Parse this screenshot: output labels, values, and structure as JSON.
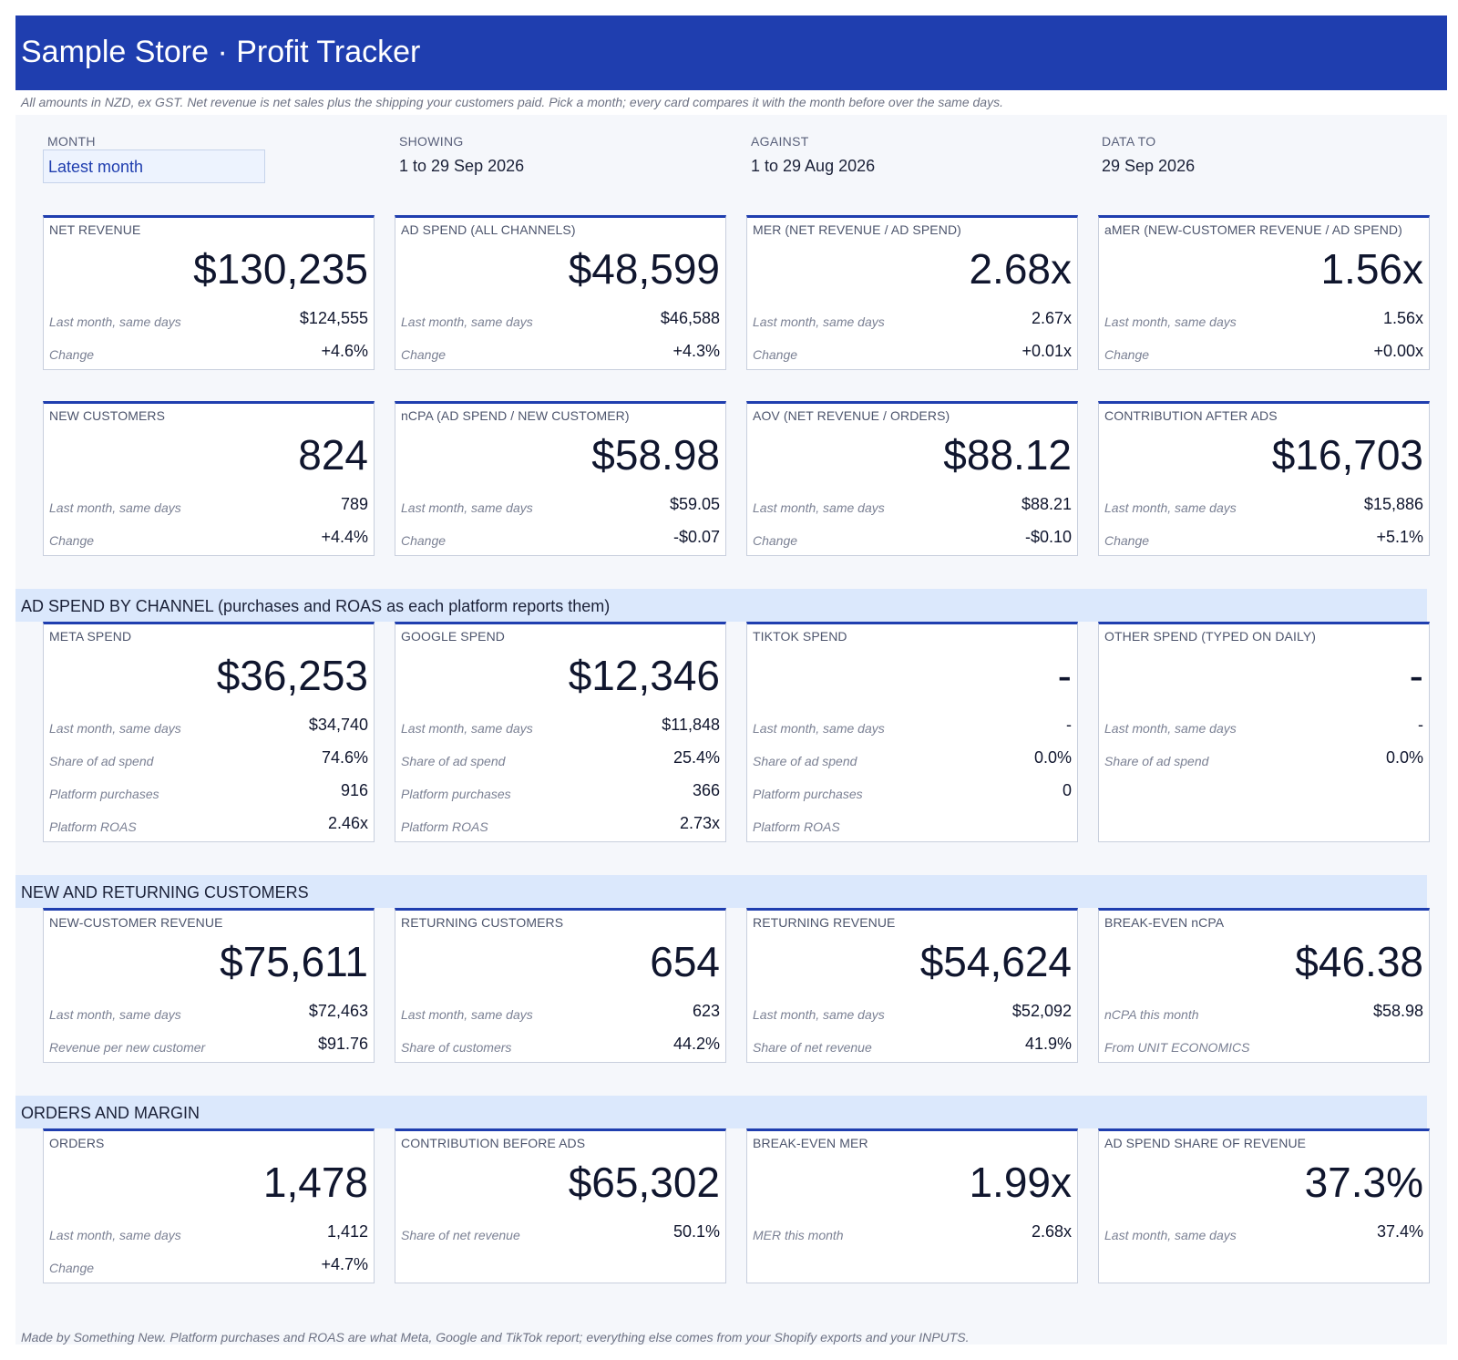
{
  "header": {
    "title": "Sample Store · Profit Tracker",
    "note": "All amounts in NZD, ex GST. Net revenue is net sales plus the shipping your customers paid. Pick a month; every card compares it with the month before over the same days."
  },
  "controls": {
    "month_label": "MONTH",
    "month_value": "Latest month",
    "showing_label": "SHOWING",
    "showing_value": "1 to 29 Sep 2026",
    "against_label": "AGAINST",
    "against_value": "1 to 29 Aug 2026",
    "data_to_label": "DATA TO",
    "data_to_value": "29 Sep 2026"
  },
  "sections": {
    "ad_spend": "AD SPEND BY CHANNEL (purchases and ROAS as each platform reports them)",
    "customers": "NEW AND RETURNING CUSTOMERS",
    "orders": "ORDERS AND MARGIN"
  },
  "cards": [
    {
      "label": "NET REVENUE",
      "value": "$130,235",
      "rows": [
        {
          "l": "Last month, same days",
          "v": "$124,555"
        },
        {
          "l": "Change",
          "v": "+4.6%"
        }
      ]
    },
    {
      "label": "AD SPEND (ALL CHANNELS)",
      "value": "$48,599",
      "rows": [
        {
          "l": "Last month, same days",
          "v": "$46,588"
        },
        {
          "l": "Change",
          "v": "+4.3%"
        }
      ]
    },
    {
      "label": "MER (NET REVENUE / AD SPEND)",
      "value": "2.68x",
      "rows": [
        {
          "l": "Last month, same days",
          "v": "2.67x"
        },
        {
          "l": "Change",
          "v": "+0.01x"
        }
      ]
    },
    {
      "label": "aMER (NEW-CUSTOMER REVENUE / AD SPEND)",
      "value": "1.56x",
      "rows": [
        {
          "l": "Last month, same days",
          "v": "1.56x"
        },
        {
          "l": "Change",
          "v": "+0.00x"
        }
      ]
    },
    {
      "label": "NEW CUSTOMERS",
      "value": "824",
      "rows": [
        {
          "l": "Last month, same days",
          "v": "789"
        },
        {
          "l": "Change",
          "v": "+4.4%"
        }
      ]
    },
    {
      "label": "nCPA (AD SPEND / NEW CUSTOMER)",
      "value": "$58.98",
      "rows": [
        {
          "l": "Last month, same days",
          "v": "$59.05"
        },
        {
          "l": "Change",
          "v": "-$0.07"
        }
      ]
    },
    {
      "label": "AOV (NET REVENUE / ORDERS)",
      "value": "$88.12",
      "rows": [
        {
          "l": "Last month, same days",
          "v": "$88.21"
        },
        {
          "l": "Change",
          "v": "-$0.10"
        }
      ]
    },
    {
      "label": "CONTRIBUTION AFTER ADS",
      "value": "$16,703",
      "rows": [
        {
          "l": "Last month, same days",
          "v": "$15,886"
        },
        {
          "l": "Change",
          "v": "+5.1%"
        }
      ]
    },
    {
      "label": "META SPEND",
      "value": "$36,253",
      "rows": [
        {
          "l": "Last month, same days",
          "v": "$34,740"
        },
        {
          "l": "Share of ad spend",
          "v": "74.6%"
        },
        {
          "l": "Platform purchases",
          "v": "916"
        },
        {
          "l": "Platform ROAS",
          "v": "2.46x"
        }
      ]
    },
    {
      "label": "GOOGLE SPEND",
      "value": "$12,346",
      "rows": [
        {
          "l": "Last month, same days",
          "v": "$11,848"
        },
        {
          "l": "Share of ad spend",
          "v": "25.4%"
        },
        {
          "l": "Platform purchases",
          "v": "366"
        },
        {
          "l": "Platform ROAS",
          "v": "2.73x"
        }
      ]
    },
    {
      "label": "TIKTOK SPEND",
      "value": "-",
      "rows": [
        {
          "l": "Last month, same days",
          "v": "-"
        },
        {
          "l": "Share of ad spend",
          "v": "0.0%"
        },
        {
          "l": "Platform purchases",
          "v": "0"
        },
        {
          "l": "Platform ROAS",
          "v": ""
        }
      ]
    },
    {
      "label": "OTHER SPEND (TYPED ON DAILY)",
      "value": "-",
      "rows": [
        {
          "l": "Last month, same days",
          "v": "-"
        },
        {
          "l": "Share of ad spend",
          "v": "0.0%"
        }
      ]
    },
    {
      "label": "NEW-CUSTOMER REVENUE",
      "value": "$75,611",
      "rows": [
        {
          "l": "Last month, same days",
          "v": "$72,463"
        },
        {
          "l": "Revenue per new customer",
          "v": "$91.76"
        }
      ]
    },
    {
      "label": "RETURNING CUSTOMERS",
      "value": "654",
      "rows": [
        {
          "l": "Last month, same days",
          "v": "623"
        },
        {
          "l": "Share of customers",
          "v": "44.2%"
        }
      ]
    },
    {
      "label": "RETURNING REVENUE",
      "value": "$54,624",
      "rows": [
        {
          "l": "Last month, same days",
          "v": "$52,092"
        },
        {
          "l": "Share of net revenue",
          "v": "41.9%"
        }
      ]
    },
    {
      "label": "BREAK-EVEN nCPA",
      "value": "$46.38",
      "rows": [
        {
          "l": "nCPA this month",
          "v": "$58.98"
        },
        {
          "l": "From UNIT ECONOMICS",
          "v": ""
        }
      ]
    },
    {
      "label": "ORDERS",
      "value": "1,478",
      "rows": [
        {
          "l": "Last month, same days",
          "v": "1,412"
        },
        {
          "l": "Change",
          "v": "+4.7%"
        }
      ]
    },
    {
      "label": "CONTRIBUTION BEFORE ADS",
      "value": "$65,302",
      "rows": [
        {
          "l": "Share of net revenue",
          "v": "50.1%"
        }
      ]
    },
    {
      "label": "BREAK-EVEN MER",
      "value": "1.99x",
      "rows": [
        {
          "l": "MER this month",
          "v": "2.68x"
        }
      ]
    },
    {
      "label": "AD SPEND SHARE OF REVENUE",
      "value": "37.3%",
      "rows": [
        {
          "l": "Last month, same days",
          "v": "37.4%"
        }
      ]
    }
  ],
  "footer": "Made by Something New. Platform purchases and ROAS are what Meta, Google and TikTok report; everything else comes from your Shopify exports and your INPUTS.",
  "colors": {
    "header_bg": "#1f3eaf",
    "section_bg": "#dbe8fc",
    "panel_bg": "#f5f7fb",
    "card_accent": "#1f3eaf"
  }
}
